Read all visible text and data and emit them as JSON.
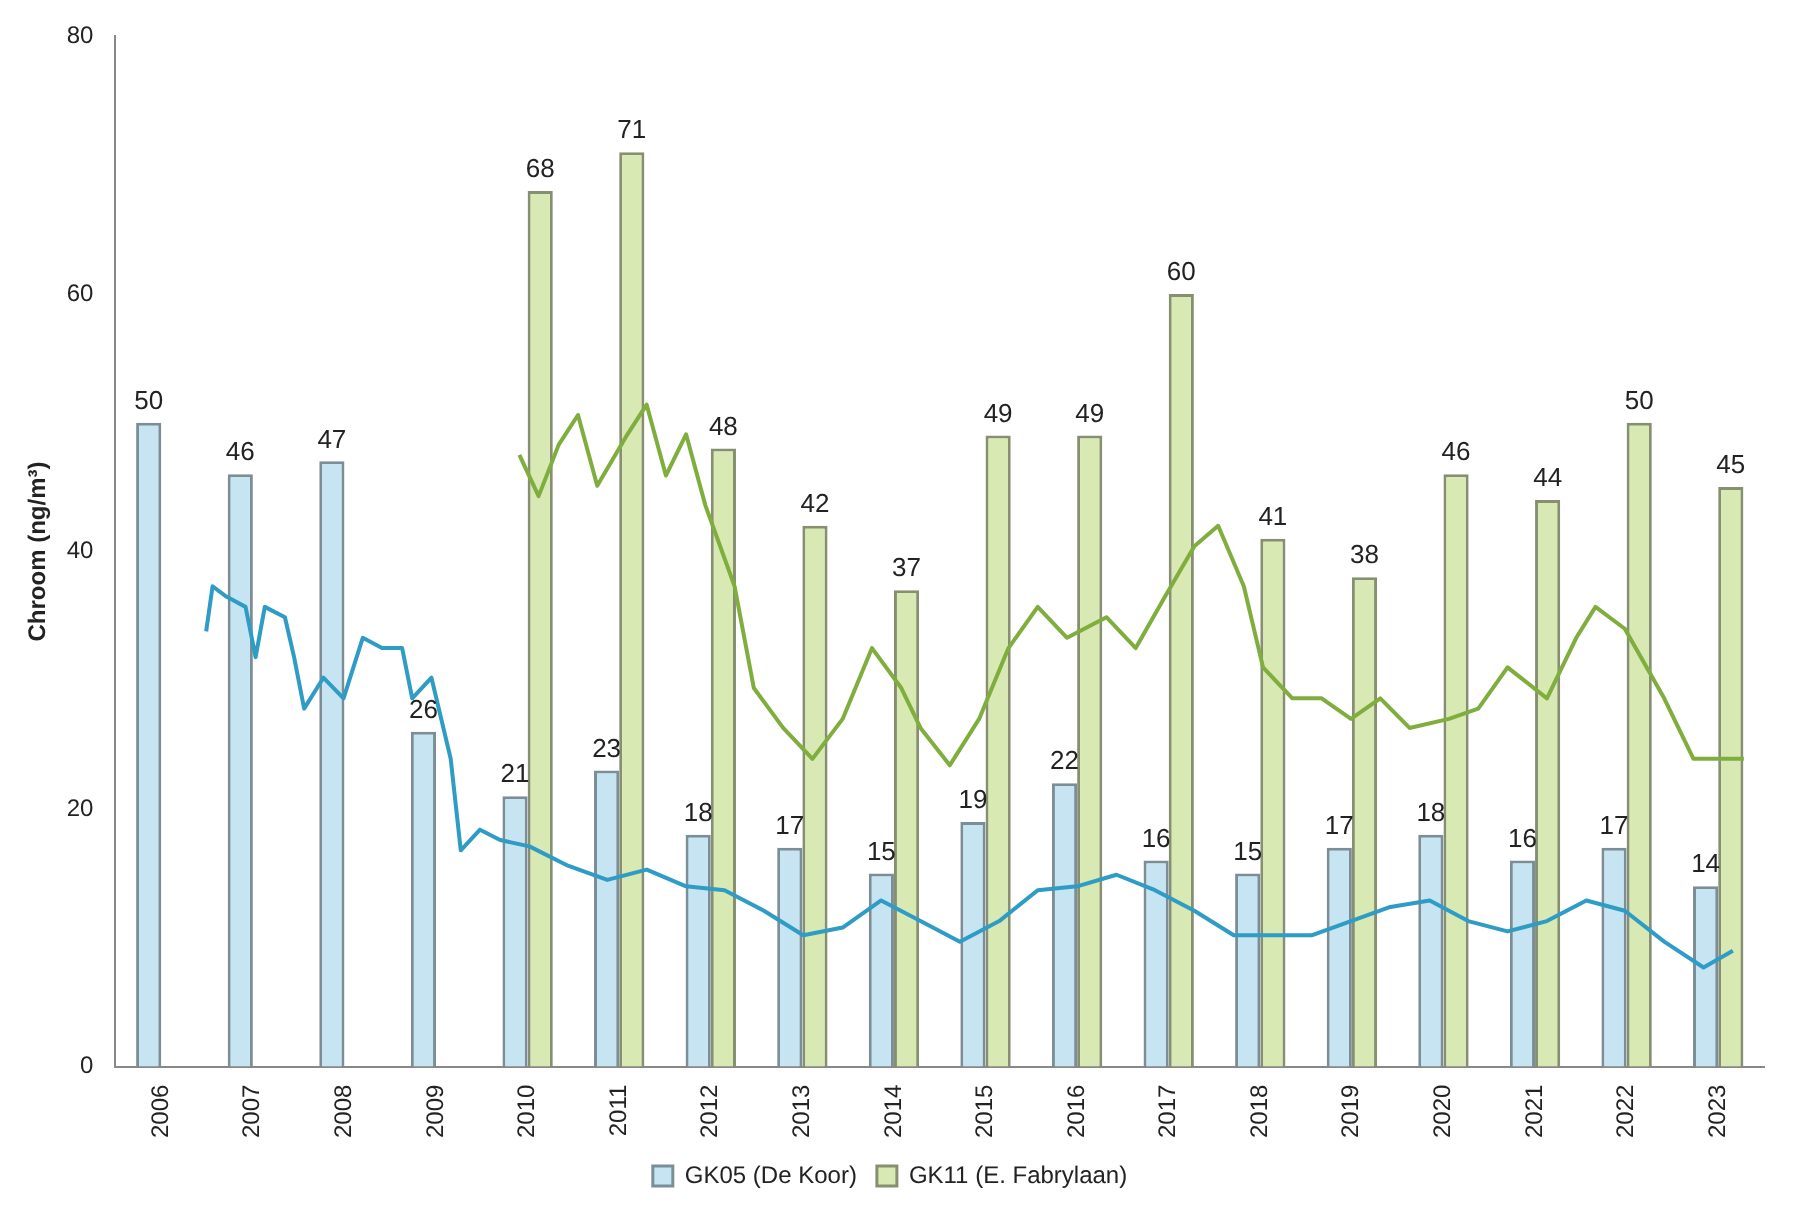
{
  "chart_data": {
    "type": "bar",
    "ylabel": "Chroom (ng/m³)",
    "x": [
      2006,
      2007,
      2008,
      2009,
      2010,
      2011,
      2012,
      2013,
      2014,
      2015,
      2016,
      2017,
      2018,
      2019,
      2020,
      2021,
      2022,
      2023
    ],
    "xlim": [
      2005.5,
      2023.5
    ],
    "xticks": [
      2006,
      2007,
      2008,
      2009,
      2010,
      2011,
      2012,
      2013,
      2014,
      2015,
      2016,
      2017,
      2018,
      2019,
      2020,
      2021,
      2022,
      2023
    ],
    "ylim": [
      0,
      80
    ],
    "yticks": [
      0,
      20,
      40,
      60,
      80
    ],
    "grid": false,
    "legend": "bottom",
    "series": [
      {
        "name": "GK05 (De Koor)",
        "color": "#c6e4f2",
        "values": [
          50,
          46,
          47,
          26,
          21,
          23,
          18,
          17,
          15,
          19,
          22,
          16,
          15,
          17,
          18,
          16,
          17,
          14
        ],
        "value_labels": [
          "50",
          "46",
          "47",
          "26",
          "21",
          "23",
          "18",
          "17",
          "15",
          "19",
          "22",
          "16",
          "15",
          "17",
          "18",
          "16",
          "17",
          "14"
        ]
      },
      {
        "name": "GK11 (E. Fabrylaan)",
        "color": "#d8e9b4",
        "values": [
          null,
          null,
          null,
          null,
          68,
          71,
          48,
          42,
          37,
          49,
          49,
          60,
          41,
          38,
          46,
          44,
          50,
          45
        ],
        "value_labels": [
          null,
          null,
          null,
          null,
          "68",
          "71",
          "48",
          "42",
          "37",
          "49",
          "49",
          "60",
          "41",
          "38",
          "46",
          "44",
          "50",
          "45"
        ]
      },
      {
        "type": "line",
        "color": "#2e9cc4",
        "x": [
          2006.49,
          2006.56,
          2006.71,
          2006.92,
          2007.03,
          2007.13,
          2007.35,
          2007.45,
          2007.56,
          2007.77,
          2007.99,
          2008.2,
          2008.41,
          2008.63,
          2008.74,
          2008.95,
          2009.16,
          2009.27,
          2009.48,
          2009.7,
          2010.02,
          2010.44,
          2010.87,
          2011.3,
          2011.73,
          2012.15,
          2012.58,
          2013.01,
          2013.44,
          2013.86,
          2014.29,
          2014.72,
          2015.15,
          2015.57,
          2016,
          2016.43,
          2016.85,
          2017.28,
          2017.71,
          2018.14,
          2018.56,
          2018.99,
          2019.42,
          2019.85,
          2020.27,
          2020.7,
          2021.13,
          2021.56,
          2021.98,
          2022.41,
          2022.84,
          2023.16
        ],
        "values": [
          33.8,
          37.3,
          36.5,
          35.7,
          31.8,
          35.7,
          34.9,
          31.8,
          27.8,
          30.2,
          28.6,
          33.3,
          32.5,
          32.5,
          28.6,
          30.2,
          23.9,
          16.8,
          18.4,
          17.6,
          17.1,
          15.6,
          14.5,
          15.3,
          14,
          13.7,
          12.1,
          10.2,
          10.8,
          12.9,
          11.3,
          9.7,
          11.3,
          13.7,
          14,
          14.9,
          13.7,
          12.1,
          10.2,
          10.2,
          10.2,
          11.3,
          12.4,
          12.9,
          11.3,
          10.5,
          11.3,
          12.9,
          12.1,
          9.7,
          7.7,
          9
        ]
      },
      {
        "type": "line",
        "color": "#7fae3e",
        "x": [
          2009.91,
          2010.12,
          2010.34,
          2010.55,
          2010.76,
          2011.09,
          2011.3,
          2011.51,
          2011.73,
          2011.94,
          2012.26,
          2012.47,
          2012.79,
          2013.11,
          2013.44,
          2013.76,
          2014.08,
          2014.29,
          2014.61,
          2014.93,
          2015.25,
          2015.57,
          2015.89,
          2016.32,
          2016.64,
          2016.96,
          2017.28,
          2017.54,
          2017.82,
          2018.03,
          2018.35,
          2018.67,
          2018.99,
          2019.31,
          2019.63,
          2020.06,
          2020.38,
          2020.7,
          2021.13,
          2021.45,
          2021.66,
          2021.98,
          2022.41,
          2022.73,
          2023.28
        ],
        "values": [
          47.5,
          44.3,
          48.3,
          50.6,
          45.1,
          49.1,
          51.4,
          45.9,
          49.1,
          43.6,
          37.3,
          29.4,
          26.3,
          23.9,
          27,
          32.5,
          29.4,
          26.3,
          23.4,
          27,
          32.5,
          35.7,
          33.3,
          34.9,
          32.5,
          36.5,
          40.4,
          42,
          37.3,
          31,
          28.6,
          28.6,
          27,
          28.6,
          26.3,
          27,
          27.8,
          31,
          28.6,
          33.3,
          35.7,
          34,
          28.6,
          23.9,
          23.9
        ]
      }
    ]
  }
}
